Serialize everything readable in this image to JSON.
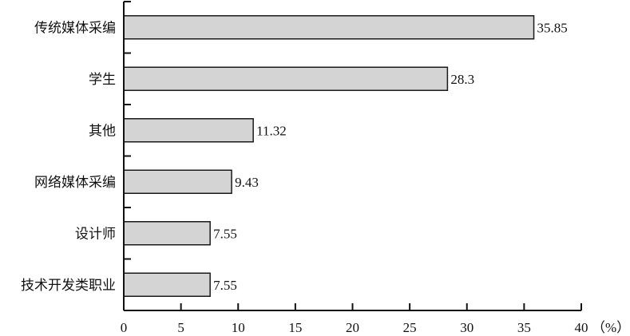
{
  "chart_data": {
    "type": "bar",
    "orientation": "horizontal",
    "categories": [
      "传统媒体采编",
      "学生",
      "其他",
      "网络媒体采编",
      "设计师",
      "技术开发类职业"
    ],
    "values": [
      35.85,
      28.3,
      11.32,
      9.43,
      7.55,
      7.55
    ],
    "value_labels": [
      "35.85",
      "28.3",
      "11.32",
      "9.43",
      "7.55",
      "7.55"
    ],
    "x_ticks": [
      0,
      5,
      10,
      15,
      20,
      25,
      30,
      35,
      40
    ],
    "xlim": [
      0,
      40
    ],
    "x_unit": "（%）",
    "grid": false,
    "bar_color": "#d4d4d4",
    "edge_color": "#1a1a1a"
  }
}
